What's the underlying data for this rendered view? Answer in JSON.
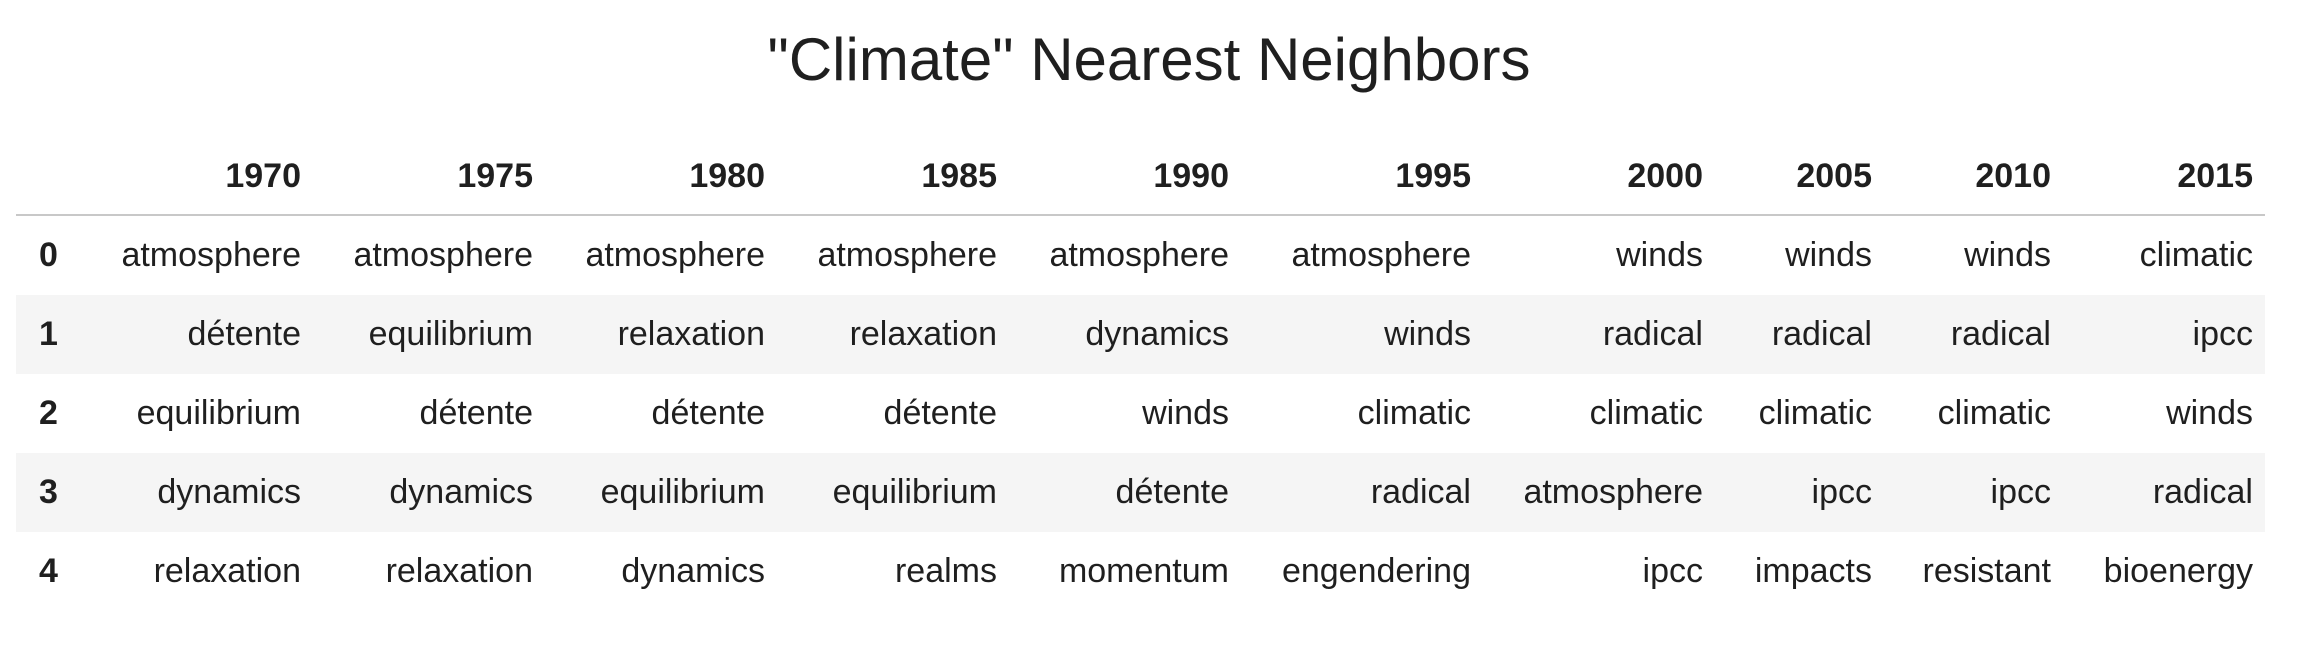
{
  "title": "\"Climate\" Nearest Neighbors",
  "table": {
    "index_header": "",
    "columns": [
      "1970",
      "1975",
      "1980",
      "1985",
      "1990",
      "1995",
      "2000",
      "2005",
      "2010",
      "2015"
    ],
    "rows": [
      {
        "index": "0",
        "cells": [
          "atmosphere",
          "atmosphere",
          "atmosphere",
          "atmosphere",
          "atmosphere",
          "atmosphere",
          "winds",
          "winds",
          "winds",
          "climatic"
        ]
      },
      {
        "index": "1",
        "cells": [
          "détente",
          "equilibrium",
          "relaxation",
          "relaxation",
          "dynamics",
          "winds",
          "radical",
          "radical",
          "radical",
          "ipcc"
        ]
      },
      {
        "index": "2",
        "cells": [
          "equilibrium",
          "détente",
          "détente",
          "détente",
          "winds",
          "climatic",
          "climatic",
          "climatic",
          "climatic",
          "winds"
        ]
      },
      {
        "index": "3",
        "cells": [
          "dynamics",
          "dynamics",
          "equilibrium",
          "equilibrium",
          "détente",
          "radical",
          "atmosphere",
          "ipcc",
          "ipcc",
          "radical"
        ]
      },
      {
        "index": "4",
        "cells": [
          "relaxation",
          "relaxation",
          "dynamics",
          "realms",
          "momentum",
          "engendering",
          "ipcc",
          "impacts",
          "resistant",
          "bioenergy"
        ]
      }
    ]
  }
}
